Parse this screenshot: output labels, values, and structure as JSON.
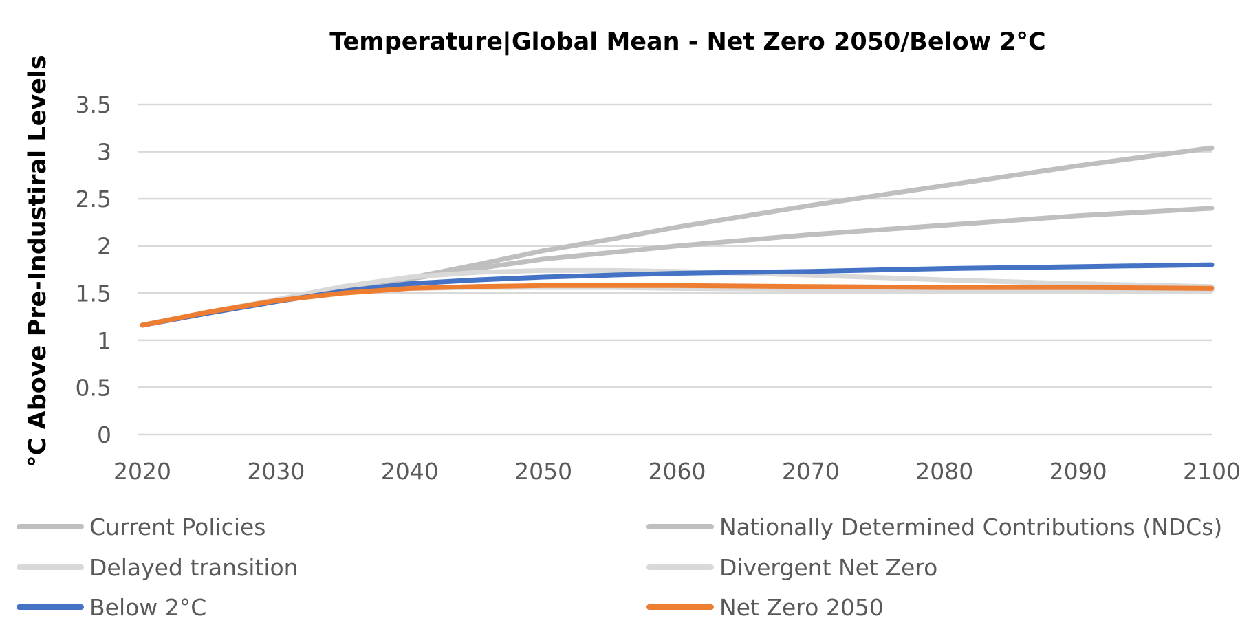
{
  "chart_data": {
    "type": "line",
    "title": "Temperature|Global Mean - Net Zero 2050/Below 2°C",
    "ylabel": "°C Above Pre-Industiral Levels",
    "xlabel": "",
    "x": [
      2020,
      2025,
      2030,
      2035,
      2040,
      2045,
      2050,
      2055,
      2060,
      2070,
      2080,
      2090,
      2100
    ],
    "xlim": [
      2020,
      2100
    ],
    "ylim": [
      0,
      3.5
    ],
    "x_ticks": [
      "2020",
      "2030",
      "2040",
      "2050",
      "2060",
      "2070",
      "2080",
      "2090",
      "2100"
    ],
    "y_ticks": [
      "0",
      "0.5",
      "1",
      "1.5",
      "2",
      "2.5",
      "3",
      "3.5"
    ],
    "grid": true,
    "legend_position": "bottom",
    "series": [
      {
        "name": "Current Policies",
        "color": "#bfbfbf",
        "values": [
          1.16,
          1.29,
          1.41,
          1.54,
          1.66,
          1.8,
          1.95,
          2.07,
          2.2,
          2.43,
          2.64,
          2.85,
          3.04
        ]
      },
      {
        "name": "Nationally Determined Contributions (NDCs)",
        "color": "#bfbfbf",
        "values": [
          1.16,
          1.29,
          1.41,
          1.54,
          1.65,
          1.76,
          1.86,
          1.93,
          2.0,
          2.12,
          2.22,
          2.32,
          2.4
        ]
      },
      {
        "name": "Delayed transition",
        "color": "#d9d9d9",
        "values": [
          1.16,
          1.3,
          1.43,
          1.57,
          1.67,
          1.72,
          1.74,
          1.74,
          1.73,
          1.69,
          1.64,
          1.6,
          1.57
        ]
      },
      {
        "name": "Divergent Net Zero",
        "color": "#d9d9d9",
        "values": [
          1.16,
          1.3,
          1.42,
          1.51,
          1.55,
          1.56,
          1.56,
          1.56,
          1.55,
          1.54,
          1.53,
          1.53,
          1.53
        ]
      },
      {
        "name": "Below 2°C",
        "color": "#4472c4",
        "values": [
          1.16,
          1.29,
          1.41,
          1.52,
          1.6,
          1.64,
          1.67,
          1.69,
          1.71,
          1.73,
          1.76,
          1.78,
          1.8
        ]
      },
      {
        "name": "Net Zero 2050",
        "color": "#ed7d31",
        "values": [
          1.16,
          1.3,
          1.42,
          1.5,
          1.55,
          1.57,
          1.58,
          1.58,
          1.58,
          1.57,
          1.56,
          1.56,
          1.55
        ]
      }
    ]
  }
}
